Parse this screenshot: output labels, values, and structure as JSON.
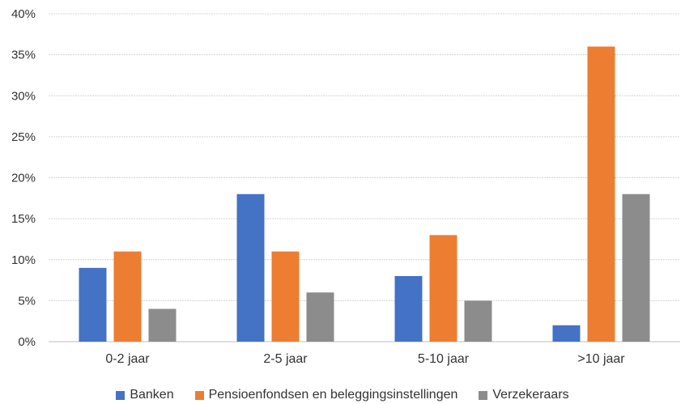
{
  "chart_data": {
    "type": "bar",
    "categories": [
      "0-2 jaar",
      "2-5 jaar",
      "5-10 jaar",
      ">10 jaar"
    ],
    "series": [
      {
        "name": "Banken",
        "color": "#4472C4",
        "values": [
          9,
          18,
          8,
          2
        ]
      },
      {
        "name": "Pensioenfondsen en beleggingsinstellingen",
        "color": "#ED7D31",
        "values": [
          11,
          11,
          13,
          36
        ]
      },
      {
        "name": "Verzekeraars",
        "color": "#8C8C8C",
        "values": [
          4,
          6,
          5,
          18
        ]
      }
    ],
    "yticks": [
      "0%",
      "5%",
      "10%",
      "15%",
      "20%",
      "25%",
      "30%",
      "35%",
      "40%"
    ],
    "ylim": [
      0,
      40
    ],
    "unit": "%",
    "grid": true,
    "legend_position": "bottom"
  }
}
